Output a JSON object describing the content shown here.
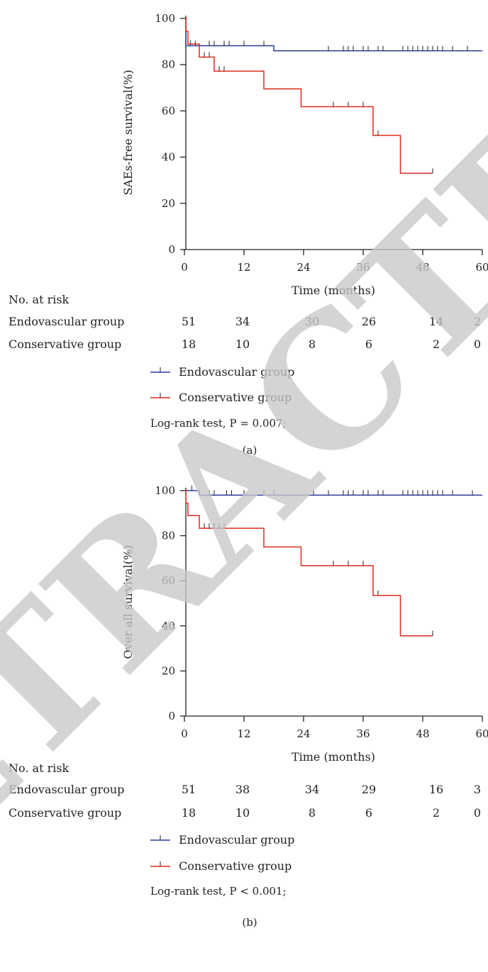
{
  "colors": {
    "endovascular": "#2a3a9a",
    "conservative": "#dd2a1b",
    "axis": "#222222",
    "watermark": "#c8c8c8"
  },
  "watermark_text": "RETRACTED",
  "chart_data": [
    {
      "type": "line",
      "subtype": "kaplan-meier",
      "panel_label": "(a)",
      "xlabel": "Time (months)",
      "ylabel": "SAEs-free survival(%)",
      "xlim": [
        0,
        60
      ],
      "ylim": [
        0,
        100
      ],
      "xticks": [
        0,
        12,
        24,
        36,
        48,
        60
      ],
      "yticks": [
        0,
        20,
        40,
        60,
        80,
        100
      ],
      "xtick_labels": [
        "0",
        "12",
        "24",
        "36",
        "48",
        "60"
      ],
      "ytick_labels": [
        "0",
        "20",
        "40",
        "60",
        "80",
        "100"
      ],
      "series": [
        {
          "name": "Endovascular group",
          "color": "#2a3a9a",
          "steps": [
            [
              0,
              100
            ],
            [
              0.3,
              88.2
            ],
            [
              18,
              86
            ],
            [
              60,
              86
            ]
          ],
          "censored": [
            [
              1.2,
              88.2
            ],
            [
              2.2,
              88.2
            ],
            [
              5,
              88.2
            ],
            [
              6,
              88.2
            ],
            [
              8,
              88.2
            ],
            [
              9,
              88.2
            ],
            [
              12,
              88.2
            ],
            [
              16,
              88.2
            ],
            [
              29,
              86
            ],
            [
              32,
              86
            ],
            [
              33,
              86
            ],
            [
              34,
              86
            ],
            [
              36,
              86
            ],
            [
              37,
              86
            ],
            [
              39,
              86
            ],
            [
              40,
              86
            ],
            [
              44,
              86
            ],
            [
              45,
              86
            ],
            [
              46,
              86
            ],
            [
              47,
              86
            ],
            [
              48,
              86
            ],
            [
              49,
              86
            ],
            [
              50,
              86
            ],
            [
              51,
              86
            ],
            [
              52,
              86
            ],
            [
              54,
              86
            ],
            [
              57,
              86
            ]
          ]
        },
        {
          "name": "Conservative group",
          "color": "#dd2a1b",
          "steps": [
            [
              0,
              100
            ],
            [
              0.3,
              94.4
            ],
            [
              0.7,
              88.9
            ],
            [
              3,
              83.3
            ],
            [
              6,
              77.2
            ],
            [
              16,
              69.5
            ],
            [
              23.5,
              61.8
            ],
            [
              38,
              49.4
            ],
            [
              43.5,
              33
            ],
            [
              50,
              33
            ]
          ],
          "censored": [
            [
              4,
              83.3
            ],
            [
              5,
              83.3
            ],
            [
              7,
              77.2
            ],
            [
              8,
              77.2
            ],
            [
              30,
              61.8
            ],
            [
              33,
              61.8
            ],
            [
              36,
              61.8
            ],
            [
              39,
              49.4
            ],
            [
              50,
              33
            ]
          ]
        }
      ],
      "risk_table": {
        "header": "No. at risk",
        "times": [
          0,
          12,
          24,
          36,
          48,
          60
        ],
        "rows": [
          {
            "name": "Endovascular group",
            "values": [
              "51",
              "34",
              "30",
              "26",
              "14",
              "2"
            ]
          },
          {
            "name": "Conservative group",
            "values": [
              "18",
              "10",
              "8",
              "6",
              "2",
              "0"
            ]
          }
        ]
      },
      "legend": [
        "Endovascular group",
        "Conservative group"
      ],
      "stat": "Log-rank test, P = 0.007;"
    },
    {
      "type": "line",
      "subtype": "kaplan-meier",
      "panel_label": "(b)",
      "xlabel": "Time (months)",
      "ylabel": "Over all survival(%)",
      "xlim": [
        0,
        60
      ],
      "ylim": [
        0,
        100
      ],
      "xticks": [
        0,
        12,
        24,
        36,
        48,
        60
      ],
      "yticks": [
        0,
        20,
        40,
        60,
        80,
        100
      ],
      "xtick_labels": [
        "0",
        "12",
        "24",
        "36",
        "48",
        "60"
      ],
      "ytick_labels": [
        "0",
        "20",
        "40",
        "60",
        "80",
        "100"
      ],
      "series": [
        {
          "name": "Endovascular group",
          "color": "#2a3a9a",
          "steps": [
            [
              0,
              100
            ],
            [
              3,
              98
            ],
            [
              60,
              98
            ]
          ],
          "censored": [
            [
              1.5,
              100
            ],
            [
              5,
              98
            ],
            [
              6,
              98
            ],
            [
              8.5,
              98
            ],
            [
              9.5,
              98
            ],
            [
              12,
              98
            ],
            [
              16,
              98
            ],
            [
              18,
              98
            ],
            [
              26,
              98
            ],
            [
              29,
              98
            ],
            [
              32,
              98
            ],
            [
              33,
              98
            ],
            [
              34,
              98
            ],
            [
              36,
              98
            ],
            [
              37,
              98
            ],
            [
              39,
              98
            ],
            [
              40,
              98
            ],
            [
              44,
              98
            ],
            [
              45,
              98
            ],
            [
              46,
              98
            ],
            [
              47,
              98
            ],
            [
              48,
              98
            ],
            [
              49,
              98
            ],
            [
              50,
              98
            ],
            [
              51,
              98
            ],
            [
              52,
              98
            ],
            [
              54,
              98
            ],
            [
              58,
              98
            ]
          ]
        },
        {
          "name": "Conservative group",
          "color": "#dd2a1b",
          "steps": [
            [
              0,
              100
            ],
            [
              0.3,
              94.4
            ],
            [
              0.7,
              88.9
            ],
            [
              3,
              83.3
            ],
            [
              16,
              75
            ],
            [
              23.5,
              66.7
            ],
            [
              38,
              53.5
            ],
            [
              43.5,
              35.6
            ],
            [
              50,
              35.6
            ]
          ],
          "censored": [
            [
              4,
              83.3
            ],
            [
              5,
              83.3
            ],
            [
              6,
              83.3
            ],
            [
              7,
              83.3
            ],
            [
              8,
              83.3
            ],
            [
              30,
              66.7
            ],
            [
              33,
              66.7
            ],
            [
              36,
              66.7
            ],
            [
              39,
              53.5
            ],
            [
              50,
              35.6
            ]
          ]
        }
      ],
      "risk_table": {
        "header": "No. at risk",
        "times": [
          0,
          12,
          24,
          36,
          48,
          60
        ],
        "rows": [
          {
            "name": "Endovascular group",
            "values": [
              "51",
              "38",
              "34",
              "29",
              "16",
              "3"
            ]
          },
          {
            "name": "Conservative group",
            "values": [
              "18",
              "10",
              "8",
              "6",
              "2",
              "0"
            ]
          }
        ]
      },
      "legend": [
        "Endovascular group",
        "Conservative group"
      ],
      "stat": "Log-rank test, P < 0.001;"
    }
  ]
}
